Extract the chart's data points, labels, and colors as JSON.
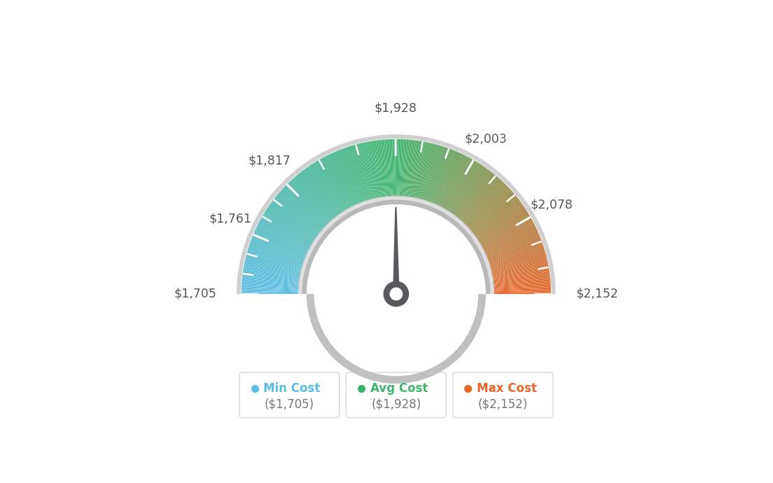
{
  "min_val": 1705,
  "max_val": 2152,
  "avg_val": 1928,
  "labels": [
    "$1,705",
    "$1,761",
    "$1,817",
    "$1,928",
    "$2,003",
    "$2,078",
    "$2,152"
  ],
  "label_values": [
    1705,
    1761,
    1817,
    1928,
    2003,
    2078,
    2152
  ],
  "legend_items": [
    {
      "label": "Min Cost",
      "value": "($1,705)",
      "color": "#5bbde4"
    },
    {
      "label": "Avg Cost",
      "value": "($1,928)",
      "color": "#3db36b"
    },
    {
      "label": "Max Cost",
      "value": "($2,152)",
      "color": "#e8652a"
    }
  ],
  "bg_color": "#ffffff",
  "gauge_colors": {
    "blue": [
      91,
      189,
      228
    ],
    "green": [
      61,
      179,
      107
    ],
    "orange": [
      232,
      101,
      42
    ]
  },
  "outer_r": 0.82,
  "inner_r": 0.52,
  "inner_track_r": 0.49,
  "needle_color": "#555558",
  "ring_color": "#cccccc",
  "ring_color2": "#aaaaaa"
}
